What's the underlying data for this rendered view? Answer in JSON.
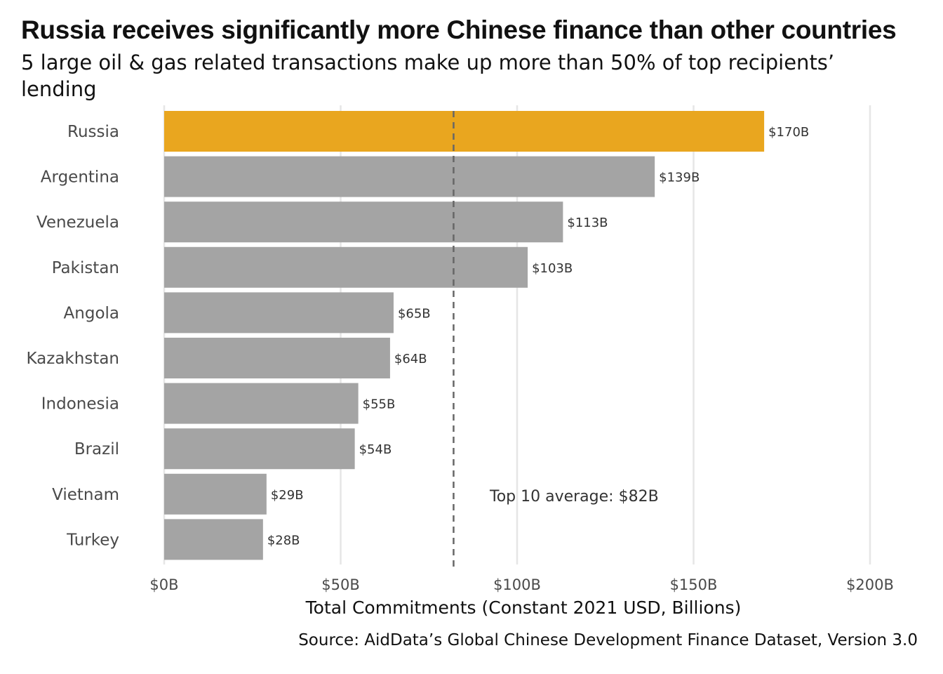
{
  "header": {
    "title": "Russia receives significantly more Chinese finance than other countries",
    "subtitle": "5 large oil & gas related transactions make up more than 50% of top recipients’ lending"
  },
  "caption": "Source: AidData’s Global Chinese Development Finance Dataset, Version 3.0",
  "chart_data": {
    "type": "bar",
    "orientation": "horizontal",
    "categories": [
      "Russia",
      "Argentina",
      "Venezuela",
      "Pakistan",
      "Angola",
      "Kazakhstan",
      "Indonesia",
      "Brazil",
      "Vietnam",
      "Turkey"
    ],
    "values": [
      170,
      139,
      113,
      103,
      65,
      64,
      55,
      54,
      29,
      28
    ],
    "value_labels": [
      "$170B",
      "$139B",
      "$113B",
      "$103B",
      "$65B",
      "$64B",
      "$55B",
      "$54B",
      "$29B",
      "$28B"
    ],
    "xlabel": "Total Commitments (Constant 2021 USD, Billions)",
    "ylabel": "",
    "xlim": [
      0,
      200
    ],
    "x_ticks": [
      0,
      50,
      100,
      150,
      200
    ],
    "x_tick_labels": [
      "$0B",
      "$50B",
      "$100B",
      "$150B",
      "$200B"
    ],
    "grid": "vertical",
    "highlight": "Russia",
    "colors": {
      "highlight": "#E9A61F",
      "default": "#A4A4A4",
      "gridline": "#E6E6E6",
      "reference_line": "#666666"
    },
    "reference_line": {
      "value": 82,
      "style": "dashed",
      "label": "Top 10 average: $82B"
    }
  }
}
